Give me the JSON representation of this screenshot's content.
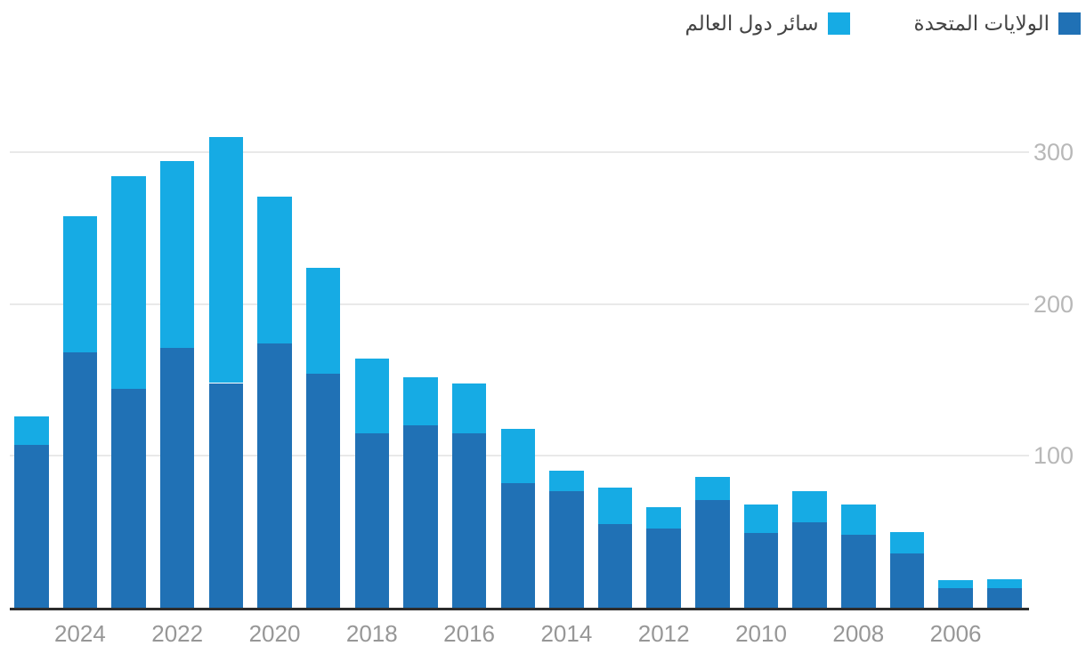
{
  "colors": {
    "us_blue": "#2071b5",
    "row_blue": "#16abe4",
    "gridline": "#e9e9e9",
    "axis_line": "#2d2d2d",
    "y_tick_text": "#b8b8b8",
    "x_tick_text": "#979797",
    "legend_text": "#444444"
  },
  "legend": {
    "position": "top-right",
    "items": [
      {
        "label": "الولايات المتحدة",
        "color_key": "us_blue"
      },
      {
        "label": "سائر دول العالم",
        "color_key": "row_blue"
      }
    ]
  },
  "chart_data": {
    "type": "bar",
    "stacked": true,
    "orientation": "vertical",
    "title": "",
    "xlabel": "",
    "ylabel": "",
    "categories": [
      "2025",
      "2024",
      "2023",
      "2022",
      "2021",
      "2020",
      "2019",
      "2018",
      "2017",
      "2016",
      "2015",
      "2014",
      "2013",
      "2012",
      "2011",
      "2010",
      "2009",
      "2008",
      "2007",
      "2006",
      "2005"
    ],
    "series": [
      {
        "name": "الولايات المتحدة",
        "color_key": "us_blue",
        "values": [
          107,
          168,
          144,
          171,
          148,
          174,
          154,
          115,
          120,
          115,
          82,
          77,
          55,
          52,
          71,
          49,
          56,
          48,
          36,
          13,
          13
        ]
      },
      {
        "name": "سائر دول العالم",
        "color_key": "row_blue",
        "values": [
          19,
          90,
          140,
          123,
          162,
          97,
          70,
          49,
          32,
          33,
          36,
          13,
          24,
          14,
          15,
          19,
          21,
          20,
          14,
          5,
          6
        ]
      }
    ],
    "totals": [
      126,
      258,
      284,
      294,
      310,
      271,
      224,
      164,
      152,
      148,
      118,
      90,
      79,
      66,
      86,
      68,
      77,
      68,
      50,
      18,
      19
    ],
    "ylim": [
      0,
      320
    ],
    "yticks": [
      "300",
      "200",
      "100"
    ],
    "ytick_values": [
      300,
      200,
      100
    ],
    "ytick_side": "right",
    "xticklabels": [
      "2024",
      "2022",
      "2020",
      "2018",
      "2016",
      "2014",
      "2012",
      "2010",
      "2008",
      "2006"
    ],
    "grid": "horizontal",
    "legend_position": "top-right"
  }
}
